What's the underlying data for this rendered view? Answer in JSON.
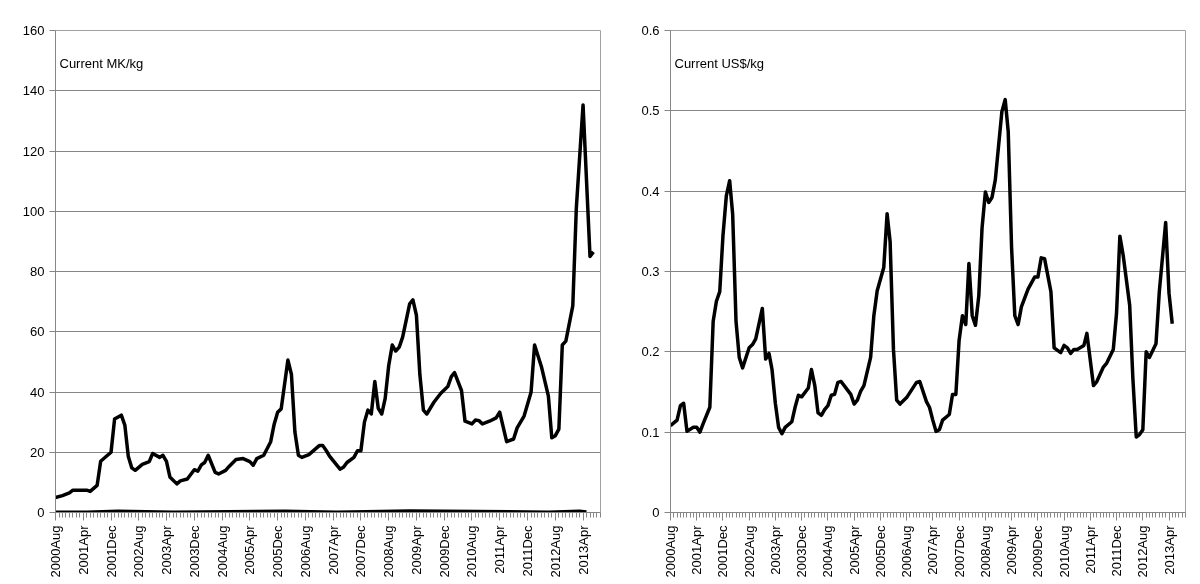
{
  "chart_data": [
    {
      "type": "line",
      "ylabel": "Current MK/kg",
      "ylim": [
        0,
        160
      ],
      "yticks": [
        0,
        20,
        40,
        60,
        80,
        100,
        120,
        140,
        160
      ],
      "xlim": [
        "2000-08",
        "2013-09"
      ],
      "xticks": [
        {
          "value": "2000-08",
          "label": "2000Aug"
        },
        {
          "value": "2001-04",
          "label": "2001Apr"
        },
        {
          "value": "2001-12",
          "label": "2001Dec"
        },
        {
          "value": "2002-08",
          "label": "2002Aug"
        },
        {
          "value": "2003-04",
          "label": "2003Apr"
        },
        {
          "value": "2003-12",
          "label": "2003Dec"
        },
        {
          "value": "2004-08",
          "label": "2004Aug"
        },
        {
          "value": "2005-04",
          "label": "2005Apr"
        },
        {
          "value": "2005-12",
          "label": "2005Dec"
        },
        {
          "value": "2006-08",
          "label": "2006Aug"
        },
        {
          "value": "2007-04",
          "label": "2007Apr"
        },
        {
          "value": "2007-12",
          "label": "2007Dec"
        },
        {
          "value": "2008-08",
          "label": "2008Aug"
        },
        {
          "value": "2009-04",
          "label": "2009Apr"
        },
        {
          "value": "2009-12",
          "label": "2009Dec"
        },
        {
          "value": "2010-08",
          "label": "2010Aug"
        },
        {
          "value": "2011-04",
          "label": "2011Apr"
        },
        {
          "value": "2011-12",
          "label": "2011Dec"
        },
        {
          "value": "2012-08",
          "label": "2012Aug"
        },
        {
          "value": "2013-04",
          "label": "2013Apr"
        }
      ],
      "grid": "y",
      "series": [
        {
          "color": "#000000",
          "x": [
            "2000-08",
            "2000-10",
            "2000-12",
            "2001-01",
            "2001-05",
            "2001-06",
            "2001-08",
            "2001-09",
            "2001-12",
            "2002-01",
            "2002-03",
            "2002-04",
            "2002-05",
            "2002-06",
            "2002-07",
            "2002-09",
            "2002-11",
            "2002-12",
            "2003-02",
            "2003-03",
            "2003-04",
            "2003-05",
            "2003-07",
            "2003-08",
            "2003-10",
            "2003-12",
            "2004-01",
            "2004-02",
            "2004-03",
            "2004-04",
            "2004-06",
            "2004-07",
            "2004-09",
            "2004-10",
            "2004-12",
            "2005-02",
            "2005-04",
            "2005-05",
            "2005-06",
            "2005-08",
            "2005-10",
            "2005-11",
            "2005-12",
            "2006-01",
            "2006-03",
            "2006-04",
            "2006-05",
            "2006-06",
            "2006-07",
            "2006-09",
            "2006-12",
            "2007-01",
            "2007-02",
            "2007-03",
            "2007-06",
            "2007-07",
            "2007-08",
            "2007-10",
            "2007-11",
            "2007-12",
            "2008-01",
            "2008-02",
            "2008-03",
            "2008-04",
            "2008-05",
            "2008-06",
            "2008-07",
            "2008-08",
            "2008-09",
            "2008-10",
            "2008-11",
            "2008-12",
            "2009-02",
            "2009-03",
            "2009-04",
            "2009-05",
            "2009-06",
            "2009-07",
            "2009-09",
            "2009-11",
            "2010-01",
            "2010-02",
            "2010-03",
            "2010-05",
            "2010-06",
            "2010-08",
            "2010-09",
            "2010-10",
            "2010-11",
            "2011-01",
            "2011-03",
            "2011-04",
            "2011-06",
            "2011-08",
            "2011-09",
            "2011-11",
            "2012-01",
            "2012-02",
            "2012-04",
            "2012-06",
            "2012-07",
            "2012-08",
            "2012-09",
            "2012-10",
            "2012-11",
            "2013-01",
            "2013-02",
            "2013-04",
            "2013-06",
            "2013-07"
          ],
          "values": [
            5.0,
            5.6,
            6.5,
            7.4,
            7.4,
            7.0,
            9,
            17,
            20,
            31,
            32.3,
            29,
            18.7,
            14.8,
            14.0,
            16,
            16.9,
            19.6,
            18.3,
            19,
            17,
            11.8,
            9.5,
            10.5,
            11.1,
            14.2,
            13.7,
            15.8,
            16.6,
            19,
            13.3,
            12.8,
            14,
            15.3,
            17.6,
            17.9,
            16.9,
            15.7,
            17.9,
            19,
            23.5,
            29.4,
            33.3,
            34.4,
            50.6,
            45.8,
            26.8,
            19,
            18.3,
            19.2,
            22.2,
            22.2,
            20.5,
            18.7,
            14.4,
            15,
            16.6,
            18.3,
            20.5,
            20.5,
            30,
            34,
            32.7,
            43.5,
            34.6,
            32.7,
            37.9,
            48.8,
            55.6,
            53.6,
            54.9,
            58.2,
            69.3,
            70.6,
            65.4,
            45.8,
            34,
            32.7,
            36.6,
            39.6,
            41.8,
            45.1,
            46.4,
            40.5,
            30.3,
            29.4,
            30.7,
            30.5,
            29.4,
            30.3,
            31.4,
            33.3,
            23.5,
            24.4,
            28.1,
            32,
            39.9,
            55.6,
            48.4,
            38.6,
            24.8,
            25.5,
            27.7,
            55.6,
            56.9,
            68.6,
            101,
            135.3,
            85,
            86.5
          ]
        },
        {
          "color": "#000000",
          "x": [
            "2000-08",
            "2001-05",
            "2002-02",
            "2003-06",
            "2006-02",
            "2007-05",
            "2009-02",
            "2012-06",
            "2013-03",
            "2013-05"
          ],
          "values": [
            0.1,
            0.1,
            0.4,
            0.1,
            0.4,
            0.1,
            0.5,
            0.1,
            0.4,
            0.2
          ]
        }
      ]
    },
    {
      "type": "line",
      "ylabel": "Current US$/kg",
      "ylim": [
        0,
        0.6
      ],
      "yticks": [
        0,
        0.1,
        0.2,
        0.3,
        0.4,
        0.5,
        0.6
      ],
      "xlim": [
        "2000-08",
        "2013-09"
      ],
      "xticks": [
        {
          "value": "2000-08",
          "label": "2000Aug"
        },
        {
          "value": "2001-04",
          "label": "2001Apr"
        },
        {
          "value": "2001-12",
          "label": "2001Dec"
        },
        {
          "value": "2002-08",
          "label": "2002Aug"
        },
        {
          "value": "2003-04",
          "label": "2003Apr"
        },
        {
          "value": "2003-12",
          "label": "2003Dec"
        },
        {
          "value": "2004-08",
          "label": "2004Aug"
        },
        {
          "value": "2005-04",
          "label": "2005Apr"
        },
        {
          "value": "2005-12",
          "label": "2005Dec"
        },
        {
          "value": "2006-08",
          "label": "2006Aug"
        },
        {
          "value": "2007-04",
          "label": "2007Apr"
        },
        {
          "value": "2007-12",
          "label": "2007Dec"
        },
        {
          "value": "2008-08",
          "label": "2008Aug"
        },
        {
          "value": "2009-04",
          "label": "2009Apr"
        },
        {
          "value": "2009-12",
          "label": "2009Dec"
        },
        {
          "value": "2010-08",
          "label": "2010Aug"
        },
        {
          "value": "2011-04",
          "label": "2011Apr"
        },
        {
          "value": "2011-12",
          "label": "2011Dec"
        },
        {
          "value": "2012-08",
          "label": "2012Aug"
        },
        {
          "value": "2013-04",
          "label": "2013Apr"
        }
      ],
      "grid": "y",
      "series": [
        {
          "color": "#000000",
          "x": [
            "2000-08",
            "2000-10",
            "2000-11",
            "2000-12",
            "2001-01",
            "2001-03",
            "2001-04",
            "2001-05",
            "2001-06",
            "2001-08",
            "2001-09",
            "2001-10",
            "2001-11",
            "2001-12",
            "2002-01",
            "2002-02",
            "2002-03",
            "2002-04",
            "2002-05",
            "2002-06",
            "2002-08",
            "2002-09",
            "2002-10",
            "2002-12",
            "2003-01",
            "2003-02",
            "2003-03",
            "2003-04",
            "2003-05",
            "2003-06",
            "2003-07",
            "2003-09",
            "2003-10",
            "2003-11",
            "2003-12",
            "2004-02",
            "2004-03",
            "2004-04",
            "2004-05",
            "2004-06",
            "2004-07",
            "2004-08",
            "2004-09",
            "2004-10",
            "2004-11",
            "2004-12",
            "2005-02",
            "2005-03",
            "2005-04",
            "2005-05",
            "2005-06",
            "2005-07",
            "2005-09",
            "2005-10",
            "2005-11",
            "2006-01",
            "2006-02",
            "2006-03",
            "2006-04",
            "2006-05",
            "2006-06",
            "2006-08",
            "2006-11",
            "2006-12",
            "2007-02",
            "2007-03",
            "2007-04",
            "2007-05",
            "2007-06",
            "2007-07",
            "2007-09",
            "2007-10",
            "2007-11",
            "2007-12",
            "2008-01",
            "2008-02",
            "2008-03",
            "2008-04",
            "2008-05",
            "2008-06",
            "2008-07",
            "2008-08",
            "2008-09",
            "2008-10",
            "2008-11",
            "2009-01",
            "2009-02",
            "2009-03",
            "2009-04",
            "2009-05",
            "2009-06",
            "2009-07",
            "2009-09",
            "2009-11",
            "2009-12",
            "2010-01",
            "2010-02",
            "2010-04",
            "2010-05",
            "2010-07",
            "2010-08",
            "2010-09",
            "2010-10",
            "2010-11",
            "2010-12",
            "2011-02",
            "2011-03",
            "2011-05",
            "2011-06",
            "2011-08",
            "2011-09",
            "2011-11",
            "2011-12",
            "2012-01",
            "2012-02",
            "2012-04",
            "2012-05",
            "2012-06",
            "2012-07",
            "2012-08",
            "2012-09",
            "2012-10",
            "2012-12",
            "2013-01",
            "2013-02",
            "2013-03",
            "2013-04",
            "2013-05"
          ],
          "values": [
            0.108,
            0.115,
            0.133,
            0.136,
            0.101,
            0.106,
            0.106,
            0.1,
            0.111,
            0.131,
            0.238,
            0.263,
            0.275,
            0.345,
            0.394,
            0.413,
            0.371,
            0.238,
            0.193,
            0.18,
            0.205,
            0.209,
            0.216,
            0.254,
            0.191,
            0.198,
            0.178,
            0.136,
            0.106,
            0.098,
            0.106,
            0.113,
            0.131,
            0.146,
            0.144,
            0.155,
            0.178,
            0.158,
            0.124,
            0.121,
            0.128,
            0.133,
            0.146,
            0.147,
            0.162,
            0.163,
            0.152,
            0.147,
            0.135,
            0.14,
            0.151,
            0.158,
            0.193,
            0.245,
            0.276,
            0.305,
            0.372,
            0.337,
            0.203,
            0.14,
            0.135,
            0.143,
            0.162,
            0.163,
            0.138,
            0.131,
            0.115,
            0.101,
            0.103,
            0.115,
            0.122,
            0.147,
            0.147,
            0.214,
            0.245,
            0.234,
            0.31,
            0.245,
            0.233,
            0.27,
            0.354,
            0.399,
            0.386,
            0.392,
            0.414,
            0.499,
            0.514,
            0.474,
            0.33,
            0.245,
            0.234,
            0.256,
            0.278,
            0.293,
            0.293,
            0.317,
            0.316,
            0.275,
            0.205,
            0.199,
            0.208,
            0.205,
            0.198,
            0.203,
            0.203,
            0.208,
            0.223,
            0.158,
            0.163,
            0.181,
            0.186,
            0.203,
            0.248,
            0.344,
            0.32,
            0.258,
            0.166,
            0.094,
            0.097,
            0.103,
            0.2,
            0.193,
            0.21,
            0.275,
            0.32,
            0.361,
            0.273,
            0.235
          ]
        }
      ]
    }
  ]
}
